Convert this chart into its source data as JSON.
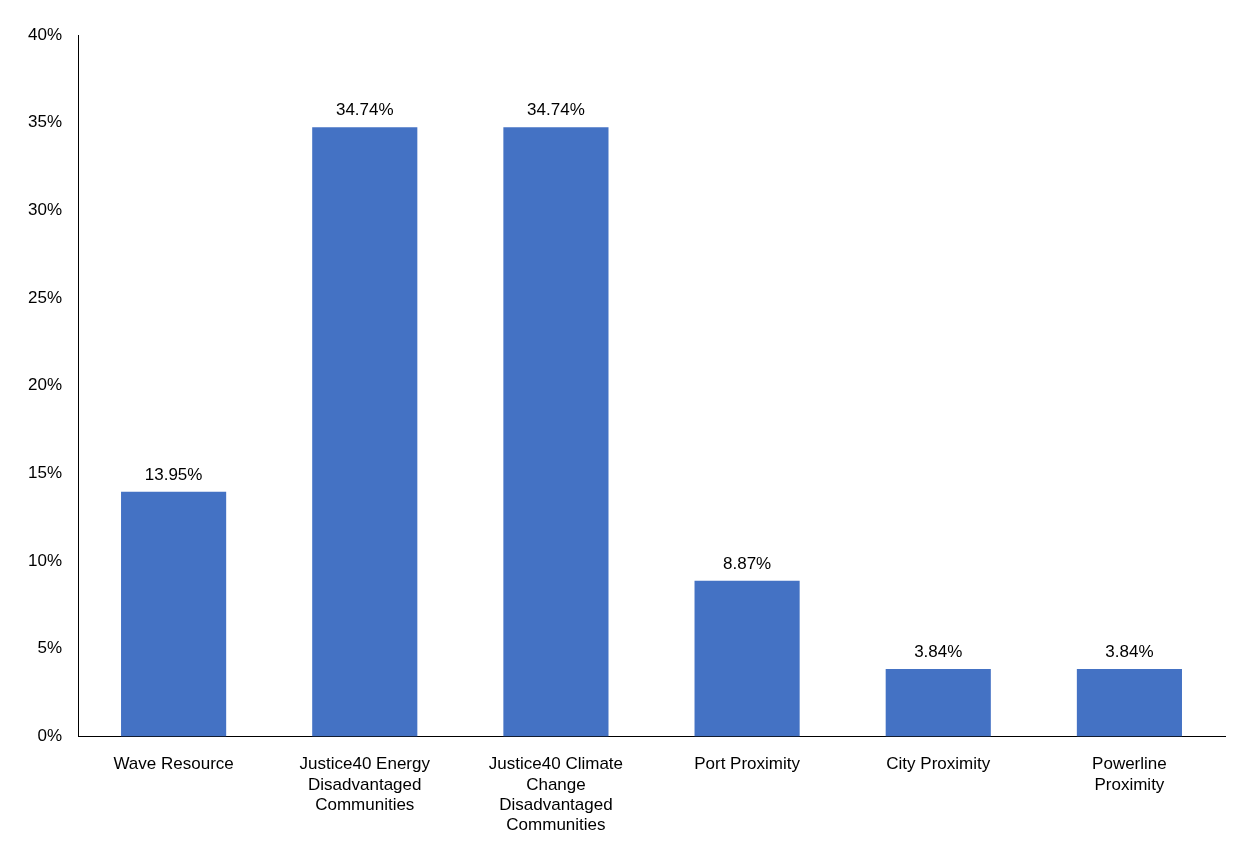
{
  "chart_data": {
    "type": "bar",
    "categories": [
      "Wave Resource",
      "Justice40 Energy Disadvantaged Communities",
      "Justice40 Climate Change Disadvantaged Communities",
      "Port Proximity",
      "City Proximity",
      "Powerline Proximity"
    ],
    "values": [
      13.95,
      34.74,
      34.74,
      8.87,
      3.84,
      3.84
    ],
    "value_labels": [
      "13.95%",
      "34.74%",
      "34.74%",
      "8.87%",
      "3.84%",
      "3.84%"
    ],
    "color": "#4472c4",
    "ylim": [
      0,
      40
    ],
    "yticks": [
      {
        "value": 0,
        "label": "0%"
      },
      {
        "value": 5,
        "label": "5%"
      },
      {
        "value": 10,
        "label": "10%"
      },
      {
        "value": 15,
        "label": "15%"
      },
      {
        "value": 20,
        "label": "20%"
      },
      {
        "value": 25,
        "label": "25%"
      },
      {
        "value": 30,
        "label": "30%"
      },
      {
        "value": 35,
        "label": "35%"
      },
      {
        "value": 40,
        "label": "40%"
      }
    ],
    "grid": false,
    "legend": false
  }
}
